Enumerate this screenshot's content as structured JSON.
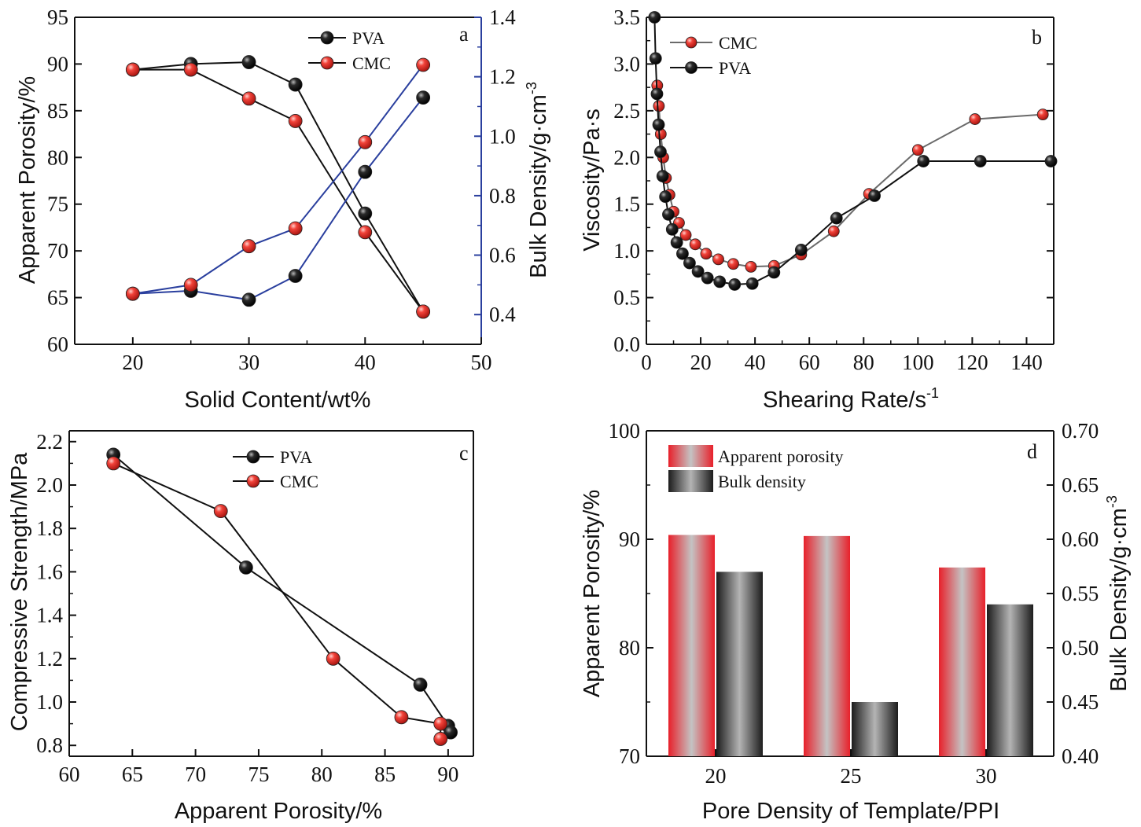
{
  "colors": {
    "black": "#111111",
    "red": "#e8322c",
    "blue": "#2a3f9e",
    "gray_line": "#6a6a6a"
  },
  "chart_data": [
    {
      "panel": "a",
      "type": "line",
      "xlabel": "Solid Content/wt%",
      "ylabel": "Apparent Porosity/%",
      "y2label": "Bulk Density/g·cm",
      "y2label_sup": "-3",
      "xlim": [
        15,
        50
      ],
      "ylim": [
        60,
        95
      ],
      "y2lim": [
        0.3,
        1.4
      ],
      "xticks": [
        "20",
        "30",
        "40",
        "50"
      ],
      "yticks": [
        "60",
        "65",
        "70",
        "75",
        "80",
        "85",
        "90",
        "95"
      ],
      "y2ticks": [
        "0.4",
        "0.6",
        "0.8",
        "1.0",
        "1.2",
        "1.4"
      ],
      "legend": [
        "PVA",
        "CMC"
      ],
      "series": [
        {
          "name": "PVA",
          "axis": "left",
          "x": [
            20,
            25,
            30,
            34,
            40,
            45
          ],
          "y": [
            89.4,
            90.0,
            90.2,
            87.8,
            74.0,
            63.5
          ]
        },
        {
          "name": "CMC",
          "axis": "left",
          "x": [
            20,
            25,
            30,
            34,
            40,
            45
          ],
          "y": [
            89.4,
            89.4,
            86.3,
            83.9,
            72.0,
            63.5
          ]
        },
        {
          "name": "PVA",
          "axis": "right",
          "x": [
            20,
            25,
            30,
            34,
            40,
            45
          ],
          "y": [
            0.47,
            0.48,
            0.45,
            0.53,
            0.88,
            1.13
          ]
        },
        {
          "name": "CMC",
          "axis": "right",
          "x": [
            20,
            25,
            30,
            34,
            40,
            45
          ],
          "y": [
            0.47,
            0.5,
            0.63,
            0.69,
            0.98,
            1.24
          ]
        }
      ]
    },
    {
      "panel": "b",
      "type": "line",
      "xlabel": "Shearing Rate/s",
      "xlabel_sup": "-1",
      "ylabel": "Viscosity/Pa·s",
      "xlim": [
        0,
        150
      ],
      "ylim": [
        0,
        3.5
      ],
      "xticks": [
        "0",
        "20",
        "40",
        "60",
        "80",
        "100",
        "120",
        "140"
      ],
      "yticks": [
        "0.0",
        "0.5",
        "1.0",
        "1.5",
        "2.0",
        "2.5",
        "3.0",
        "3.5"
      ],
      "legend": [
        "CMC",
        "PVA"
      ],
      "series": [
        {
          "name": "CMC",
          "x": [
            4,
            4.6,
            5.3,
            6.2,
            7.2,
            8.5,
            10,
            12,
            14.5,
            18,
            22,
            26.5,
            32,
            38.5,
            47,
            57,
            69,
            82,
            100,
            121,
            146
          ],
          "y": [
            2.77,
            2.55,
            2.25,
            2.0,
            1.78,
            1.6,
            1.42,
            1.3,
            1.17,
            1.07,
            0.97,
            0.91,
            0.86,
            0.83,
            0.84,
            0.96,
            1.21,
            1.61,
            2.08,
            2.41,
            2.46
          ]
        },
        {
          "name": "PVA",
          "x": [
            3,
            3.4,
            3.9,
            4.5,
            5.2,
            6,
            7,
            8.1,
            9.5,
            11.2,
            13.3,
            15.9,
            19,
            22.5,
            27,
            32.5,
            39,
            47,
            57,
            70,
            84,
            102,
            123,
            149
          ],
          "y": [
            3.5,
            3.06,
            2.68,
            2.35,
            2.06,
            1.8,
            1.58,
            1.39,
            1.23,
            1.09,
            0.97,
            0.87,
            0.78,
            0.71,
            0.67,
            0.64,
            0.65,
            0.77,
            1.01,
            1.35,
            1.59,
            1.96,
            1.96,
            1.96
          ]
        }
      ]
    },
    {
      "panel": "c",
      "type": "line",
      "xlabel": "Apparent Porosity/%",
      "ylabel": "Compressive Strength/MPa",
      "xlim": [
        60,
        92
      ],
      "ylim": [
        0.75,
        2.25
      ],
      "xticks": [
        "60",
        "65",
        "70",
        "75",
        "80",
        "85",
        "90"
      ],
      "yticks": [
        "0.8",
        "1.0",
        "1.2",
        "1.4",
        "1.6",
        "1.8",
        "2.0",
        "2.2"
      ],
      "legend": [
        "PVA",
        "CMC"
      ],
      "series": [
        {
          "name": "PVA",
          "x": [
            63.5,
            74.0,
            87.8,
            90.0,
            90.2
          ],
          "y": [
            2.14,
            1.62,
            1.08,
            0.89,
            0.86
          ]
        },
        {
          "name": "CMC",
          "x": [
            63.5,
            72.0,
            80.9,
            86.3,
            89.4,
            89.4
          ],
          "y": [
            2.1,
            1.88,
            1.2,
            0.93,
            0.9,
            0.83
          ]
        }
      ]
    },
    {
      "panel": "d",
      "type": "bar",
      "xlabel": "Pore Density of Template/PPI",
      "ylabel": "Apparent Porosity/%",
      "y2label": "Bulk Density/g·cm",
      "y2label_sup": "-3",
      "categories": [
        "20",
        "25",
        "30"
      ],
      "ylim": [
        70,
        100
      ],
      "y2lim": [
        0.4,
        0.7
      ],
      "yticks": [
        "70",
        "80",
        "90",
        "100"
      ],
      "y2ticks": [
        "0.40",
        "0.45",
        "0.50",
        "0.55",
        "0.60",
        "0.65",
        "0.70"
      ],
      "legend": [
        "Apparent porosity",
        "Bulk density"
      ],
      "series": [
        {
          "name": "Apparent porosity",
          "axis": "left",
          "values": [
            90.4,
            90.3,
            87.4
          ]
        },
        {
          "name": "Bulk density",
          "axis": "right",
          "values": [
            0.57,
            0.45,
            0.54
          ]
        }
      ]
    }
  ]
}
